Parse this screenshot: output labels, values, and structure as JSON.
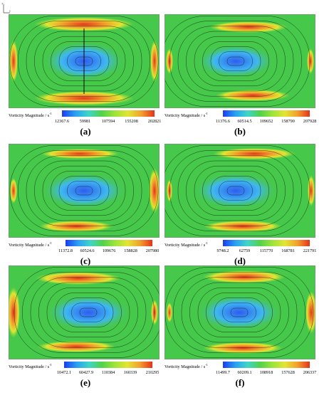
{
  "axis": {
    "y_label": "y",
    "z_label": "z"
  },
  "colorbar_title": "Vorticity Magnitude / s",
  "colorbar_exp": "-1",
  "colormap": [
    "#1b3cf0",
    "#2aa0f2",
    "#3fd6c8",
    "#53d24a",
    "#9ee43a",
    "#e2e533",
    "#f2a12e",
    "#e4321c"
  ],
  "field_colors": {
    "low": "#2f5cf0",
    "mid": "#3fb8f0",
    "bg": "#46c84a",
    "high": "#e3361e",
    "streamline": "#0a0a0a"
  },
  "panels": [
    {
      "id": "a",
      "label": "(a)",
      "ticks": [
        "12367.6",
        "59981",
        "107594",
        "155208",
        "202821"
      ]
    },
    {
      "id": "b",
      "label": "(b)",
      "ticks": [
        "11376.6",
        "60514.5",
        "109652",
        "158790",
        "207928"
      ]
    },
    {
      "id": "c",
      "label": "(c)",
      "ticks": [
        "11372.8",
        "60524.6",
        "109676",
        "158828",
        "207980"
      ]
    },
    {
      "id": "d",
      "label": "(d)",
      "ticks": [
        "9748.2",
        "62759",
        "115770",
        "168781",
        "221791"
      ]
    },
    {
      "id": "e",
      "label": "(e)",
      "ticks": [
        "10472.1",
        "60427.9",
        "110384",
        "160339",
        "210295"
      ]
    },
    {
      "id": "f",
      "label": "(f)",
      "ticks": [
        "11499.7",
        "60209.1",
        "108918",
        "157628",
        "206337"
      ]
    }
  ]
}
